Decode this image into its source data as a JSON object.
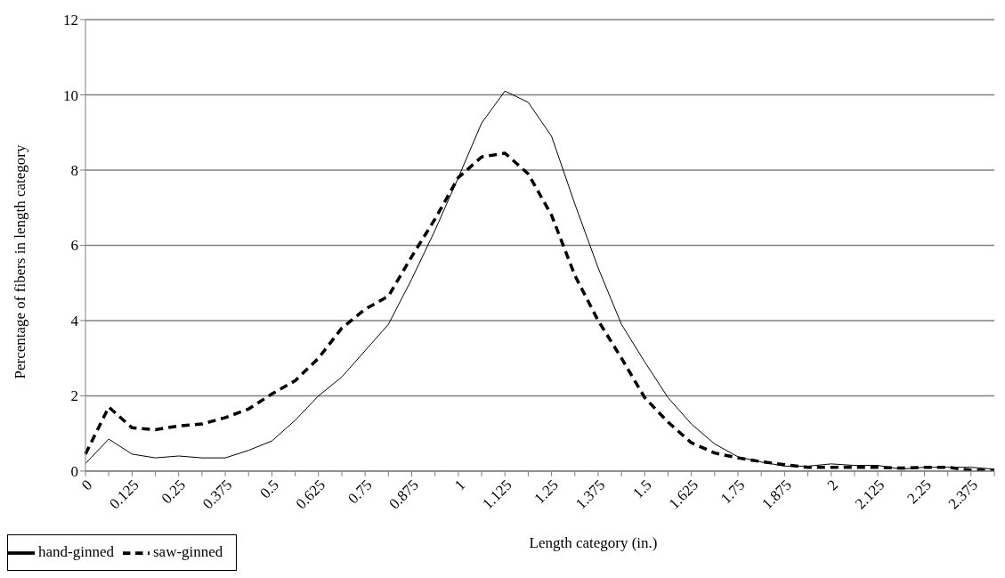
{
  "chart_data": {
    "type": "line",
    "xlabel": "Length category (in.)",
    "ylabel": "Percentage of fibers in length category",
    "categories": [
      "0",
      null,
      "0.125",
      null,
      "0.25",
      null,
      "0.375",
      null,
      "0.5",
      null,
      "0.625",
      null,
      "0.75",
      null,
      "0.875",
      null,
      "1",
      null,
      "1.125",
      null,
      "1.25",
      null,
      "1.375",
      null,
      "1.5",
      null,
      "1.625",
      null,
      "1.75",
      null,
      "1.875",
      null,
      "2",
      null,
      "2.125",
      null,
      "2.25",
      null,
      "2.375",
      null
    ],
    "series": [
      {
        "name": "hand-ginned",
        "color": "#000000",
        "line_style": "solid",
        "values": [
          0.2,
          0.85,
          0.45,
          0.35,
          0.4,
          0.35,
          0.35,
          0.55,
          0.8,
          1.35,
          2.0,
          2.5,
          3.2,
          3.9,
          5.1,
          6.4,
          7.8,
          9.25,
          10.1,
          9.8,
          8.9,
          7.1,
          5.4,
          3.9,
          2.9,
          1.95,
          1.25,
          0.72,
          0.38,
          0.24,
          0.13,
          0.13,
          0.19,
          0.15,
          0.15,
          0.05,
          0.1,
          0.1,
          0.1,
          0.05
        ]
      },
      {
        "name": "saw-ginned",
        "color": "#000000",
        "line_style": "dashed",
        "values": [
          0.45,
          1.7,
          1.15,
          1.1,
          1.2,
          1.25,
          1.42,
          1.65,
          2.05,
          2.4,
          3.0,
          3.8,
          4.3,
          4.65,
          5.7,
          6.7,
          7.8,
          8.35,
          8.45,
          7.9,
          6.8,
          5.2,
          4.0,
          3.0,
          1.95,
          1.3,
          0.75,
          0.48,
          0.35,
          0.25,
          0.17,
          0.1,
          0.1,
          0.1,
          0.1,
          0.08,
          0.1,
          0.1,
          0.02,
          0.02
        ]
      }
    ],
    "ylim": [
      0,
      12
    ],
    "yticks": [
      0,
      2,
      4,
      6,
      8,
      10,
      12
    ],
    "grid": "y",
    "legend": "bottom left",
    "marker": "none"
  }
}
